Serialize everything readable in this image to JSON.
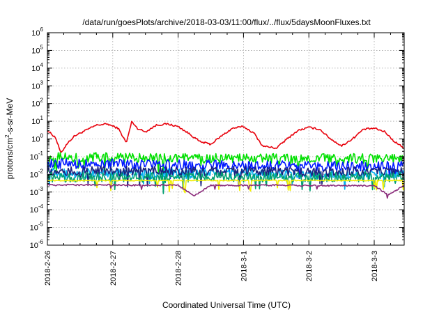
{
  "chart_data": {
    "type": "line",
    "title": "/data/run/goesPlots/archive/2018-03-03/11:00/flux/../flux/5daysMoonFluxes.txt",
    "xlabel": "Coordinated Universal Time (UTC)",
    "ylabel_parts": {
      "pre": "protons/cm",
      "sup": "2",
      "post": "-s-sr-MeV"
    },
    "yscale": "log",
    "ylim": [
      1e-06,
      1000000.0
    ],
    "y_ticks": [
      {
        "base": "10",
        "exp": "-6"
      },
      {
        "base": "10",
        "exp": "-5"
      },
      {
        "base": "10",
        "exp": "-4"
      },
      {
        "base": "10",
        "exp": "-3"
      },
      {
        "base": "10",
        "exp": "-2"
      },
      {
        "base": "10",
        "exp": "-1"
      },
      {
        "base": "10",
        "exp": "0"
      },
      {
        "base": "10",
        "exp": "1"
      },
      {
        "base": "10",
        "exp": "2"
      },
      {
        "base": "10",
        "exp": "3"
      },
      {
        "base": "10",
        "exp": "4"
      },
      {
        "base": "10",
        "exp": "5"
      },
      {
        "base": "10",
        "exp": "6"
      }
    ],
    "xlim": [
      "2018-02-26",
      "2018-03-03 11:00"
    ],
    "x_ticks": [
      "2018-2-26",
      "2018-2-27",
      "2018-2-28",
      "2018-3-1",
      "2018-3-2",
      "2018-3-3"
    ],
    "grid": true,
    "series": [
      {
        "color": "#e8000b",
        "x": [
          "2018-02-26 00:00",
          "2018-02-26 03:00",
          "2018-02-26 05:00",
          "2018-02-26 07:00",
          "2018-02-26 10:00",
          "2018-02-26 14:00",
          "2018-02-26 18:00",
          "2018-02-26 22:00",
          "2018-02-27 02:00",
          "2018-02-27 05:00",
          "2018-02-27 07:00",
          "2018-02-27 09:00",
          "2018-02-27 12:00",
          "2018-02-27 16:00",
          "2018-02-27 20:00",
          "2018-02-28 00:00",
          "2018-02-28 04:00",
          "2018-02-28 08:00",
          "2018-02-28 12:00",
          "2018-02-28 16:00",
          "2018-02-28 20:00",
          "2018-03-01 00:00",
          "2018-03-01 04:00",
          "2018-03-01 07:00",
          "2018-03-01 12:00",
          "2018-03-01 16:00",
          "2018-03-01 20:00",
          "2018-03-02 00:00",
          "2018-03-02 04:00",
          "2018-03-02 08:00",
          "2018-03-02 12:00",
          "2018-03-02 16:00",
          "2018-03-02 20:00",
          "2018-03-03 00:00",
          "2018-03-03 04:00",
          "2018-03-03 07:00",
          "2018-03-03 11:00"
        ],
        "values": [
          3.0,
          1.2,
          0.15,
          0.5,
          1.5,
          3.0,
          6.0,
          7.0,
          4.0,
          0.6,
          10.0,
          4.0,
          2.5,
          6.0,
          7.0,
          5.0,
          2.0,
          0.7,
          0.5,
          1.5,
          4.0,
          5.0,
          2.0,
          0.4,
          0.3,
          1.0,
          3.0,
          4.5,
          3.5,
          1.0,
          0.4,
          1.0,
          3.5,
          4.0,
          2.5,
          0.8,
          0.3
        ]
      },
      {
        "color": "#00e000",
        "x": [
          "2018-02-26 00:00",
          "2018-02-27 00:00",
          "2018-02-28 00:00",
          "2018-03-01 00:00",
          "2018-03-02 00:00",
          "2018-03-03 00:00",
          "2018-03-03 11:00"
        ],
        "values": [
          0.09,
          0.09,
          0.08,
          0.08,
          0.08,
          0.08,
          0.08
        ]
      },
      {
        "color": "#0018ff",
        "x": [
          "2018-02-26 00:00",
          "2018-02-27 00:00",
          "2018-02-28 00:00",
          "2018-03-01 00:00",
          "2018-03-02 00:00",
          "2018-03-03 00:00",
          "2018-03-03 11:00"
        ],
        "values": [
          0.04,
          0.04,
          0.035,
          0.035,
          0.03,
          0.03,
          0.03
        ]
      },
      {
        "color": "#00b0f0",
        "x": [
          "2018-02-26 00:00",
          "2018-02-27 00:00",
          "2018-02-28 00:00",
          "2018-03-01 00:00",
          "2018-03-02 00:00",
          "2018-03-03 00:00",
          "2018-03-03 11:00"
        ],
        "values": [
          0.012,
          0.012,
          0.011,
          0.011,
          0.01,
          0.01,
          0.01
        ]
      },
      {
        "color": "#1a237e",
        "x": [
          "2018-02-26 00:00",
          "2018-02-27 00:00",
          "2018-02-28 00:00",
          "2018-03-01 00:00",
          "2018-03-02 00:00",
          "2018-03-03 00:00",
          "2018-03-03 11:00"
        ],
        "values": [
          0.016,
          0.016,
          0.015,
          0.015,
          0.014,
          0.014,
          0.014
        ]
      },
      {
        "color": "#00a070",
        "x": [
          "2018-02-26 00:00",
          "2018-02-27 00:00",
          "2018-02-28 00:00",
          "2018-03-01 00:00",
          "2018-03-02 00:00",
          "2018-03-03 00:00",
          "2018-03-03 11:00"
        ],
        "values": [
          0.007,
          0.007,
          0.007,
          0.007,
          0.007,
          0.007,
          0.007
        ]
      },
      {
        "color": "#f2ee00",
        "x": [
          "2018-02-26 00:00",
          "2018-02-27 00:00",
          "2018-02-28 00:00",
          "2018-03-01 00:00",
          "2018-03-02 00:00",
          "2018-03-03 00:00",
          "2018-03-03 11:00"
        ],
        "values": [
          0.0045,
          0.0045,
          0.0045,
          0.0045,
          0.0045,
          0.0045,
          0.0045
        ]
      },
      {
        "color": "#8a2a7a",
        "x": [
          "2018-02-26 00:00",
          "2018-02-26 12:00",
          "2018-02-27 00:00",
          "2018-02-27 12:00",
          "2018-02-28 00:00",
          "2018-02-28 06:00",
          "2018-02-28 12:00",
          "2018-03-01 00:00",
          "2018-03-01 12:00",
          "2018-03-02 00:00",
          "2018-03-02 12:00",
          "2018-03-03 00:00",
          "2018-03-03 05:00",
          "2018-03-03 11:00"
        ],
        "values": [
          0.0025,
          0.0025,
          0.0025,
          0.0024,
          0.0024,
          0.0006,
          0.0024,
          0.0024,
          0.0024,
          0.0023,
          0.0023,
          0.0023,
          0.0007,
          0.0023
        ]
      }
    ]
  }
}
